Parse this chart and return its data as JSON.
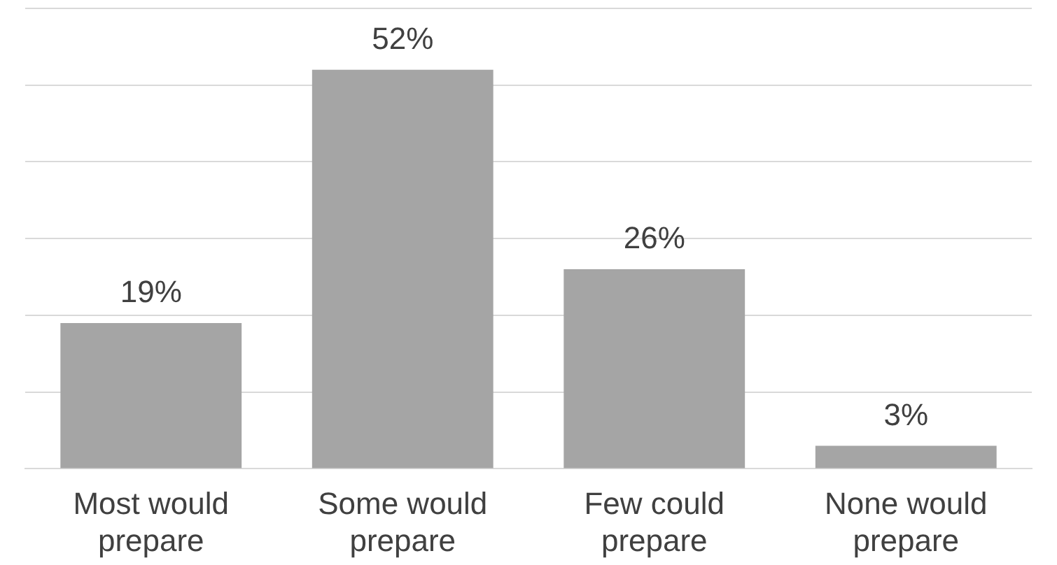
{
  "chart_data": {
    "type": "bar",
    "categories": [
      "Most would prepare",
      "Some would prepare",
      "Few could prepare",
      "None would prepare"
    ],
    "values": [
      19,
      52,
      26,
      3
    ],
    "value_labels": [
      "19%",
      "52%",
      "26%",
      "3%"
    ],
    "color": "#a5a5a5",
    "grid": "y",
    "tick_labels": "x"
  }
}
